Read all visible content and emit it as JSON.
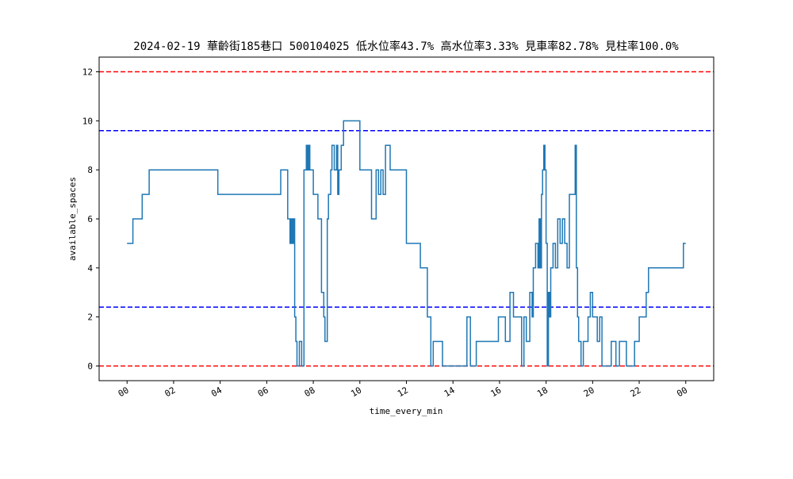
{
  "chart_data": {
    "type": "line",
    "title": "2024-02-19 華齡街185巷口 500104025 低水位率43.7% 高水位率3.33% 見車率82.78% 見柱率100.0%",
    "xlabel": "time_every_min",
    "ylabel": "available_spaces",
    "x_tick_labels": [
      "00",
      "02",
      "04",
      "06",
      "08",
      "10",
      "12",
      "14",
      "16",
      "18",
      "20",
      "22",
      "00"
    ],
    "y_ticks": [
      0,
      2,
      4,
      6,
      8,
      10,
      12
    ],
    "xlim_hours": [
      -1.2,
      25.2
    ],
    "ylim": [
      -0.6,
      12.6
    ],
    "grid": false,
    "reference_lines": [
      {
        "y": 12,
        "color": "#ff0000",
        "style": "dashed"
      },
      {
        "y": 9.6,
        "color": "#0000ff",
        "style": "dashed"
      },
      {
        "y": 2.4,
        "color": "#0000ff",
        "style": "dashed"
      },
      {
        "y": 0,
        "color": "#ff0000",
        "style": "dashed"
      }
    ],
    "series": [
      {
        "color": "#1f77b4",
        "step": true,
        "x_hours": [
          0,
          0.25,
          0.65,
          0.95,
          1.0,
          3.9,
          6.6,
          6.9,
          7.0,
          7.05,
          7.1,
          7.15,
          7.2,
          7.25,
          7.3,
          7.4,
          7.5,
          7.6,
          7.7,
          7.75,
          7.8,
          7.85,
          7.9,
          8.0,
          8.2,
          8.35,
          8.45,
          8.5,
          8.6,
          8.65,
          8.75,
          8.8,
          8.9,
          9.0,
          9.05,
          9.1,
          9.2,
          9.3,
          9.5,
          9.6,
          10.0,
          10.1,
          10.5,
          10.7,
          10.8,
          10.9,
          11.0,
          11.1,
          11.3,
          11.4,
          12.0,
          12.6,
          12.9,
          13.05,
          13.15,
          13.55,
          14.0,
          14.5,
          14.6,
          14.75,
          15.0,
          15.7,
          15.95,
          16.25,
          16.35,
          16.45,
          16.6,
          16.95,
          17.05,
          17.15,
          17.3,
          17.4,
          17.45,
          17.55,
          17.65,
          17.7,
          17.75,
          17.8,
          17.85,
          17.9,
          17.95,
          18.0,
          18.05,
          18.1,
          18.15,
          18.2,
          18.3,
          18.4,
          18.5,
          18.6,
          18.7,
          18.8,
          18.9,
          19.0,
          19.25,
          19.3,
          19.35,
          19.4,
          19.5,
          19.6,
          19.8,
          19.9,
          20.0,
          20.1,
          20.2,
          20.3,
          20.4,
          20.6,
          20.8,
          20.9,
          21.0,
          21.15,
          21.45,
          21.5,
          21.55,
          21.65,
          21.8,
          22.0,
          22.3,
          22.4,
          22.6,
          22.8,
          23.0,
          23.9,
          24.0
        ],
        "values": [
          5,
          6,
          7,
          8,
          8,
          7,
          8,
          6,
          5,
          6,
          5,
          6,
          2,
          1,
          0,
          1,
          0,
          8,
          9,
          8,
          9,
          8,
          8,
          7,
          6,
          3,
          2,
          1,
          6,
          7,
          8,
          9,
          8,
          9,
          7,
          8,
          9,
          10,
          10,
          10,
          8,
          8,
          6,
          8,
          7,
          8,
          7,
          9,
          8,
          8,
          5,
          4,
          2,
          0,
          1,
          0,
          0,
          0,
          2,
          0,
          1,
          1,
          2,
          1,
          1,
          3,
          2,
          0,
          2,
          1,
          3,
          2,
          4,
          5,
          4,
          6,
          4,
          7,
          8,
          9,
          8,
          5,
          0,
          3,
          2,
          4,
          5,
          4,
          6,
          5,
          6,
          5,
          4,
          7,
          9,
          4,
          2,
          1,
          0,
          1,
          2,
          3,
          2,
          2,
          1,
          2,
          0,
          0,
          1,
          1,
          0,
          1,
          0,
          0,
          0,
          0,
          1,
          2,
          3,
          4,
          4,
          4,
          4,
          5,
          5
        ]
      }
    ]
  }
}
